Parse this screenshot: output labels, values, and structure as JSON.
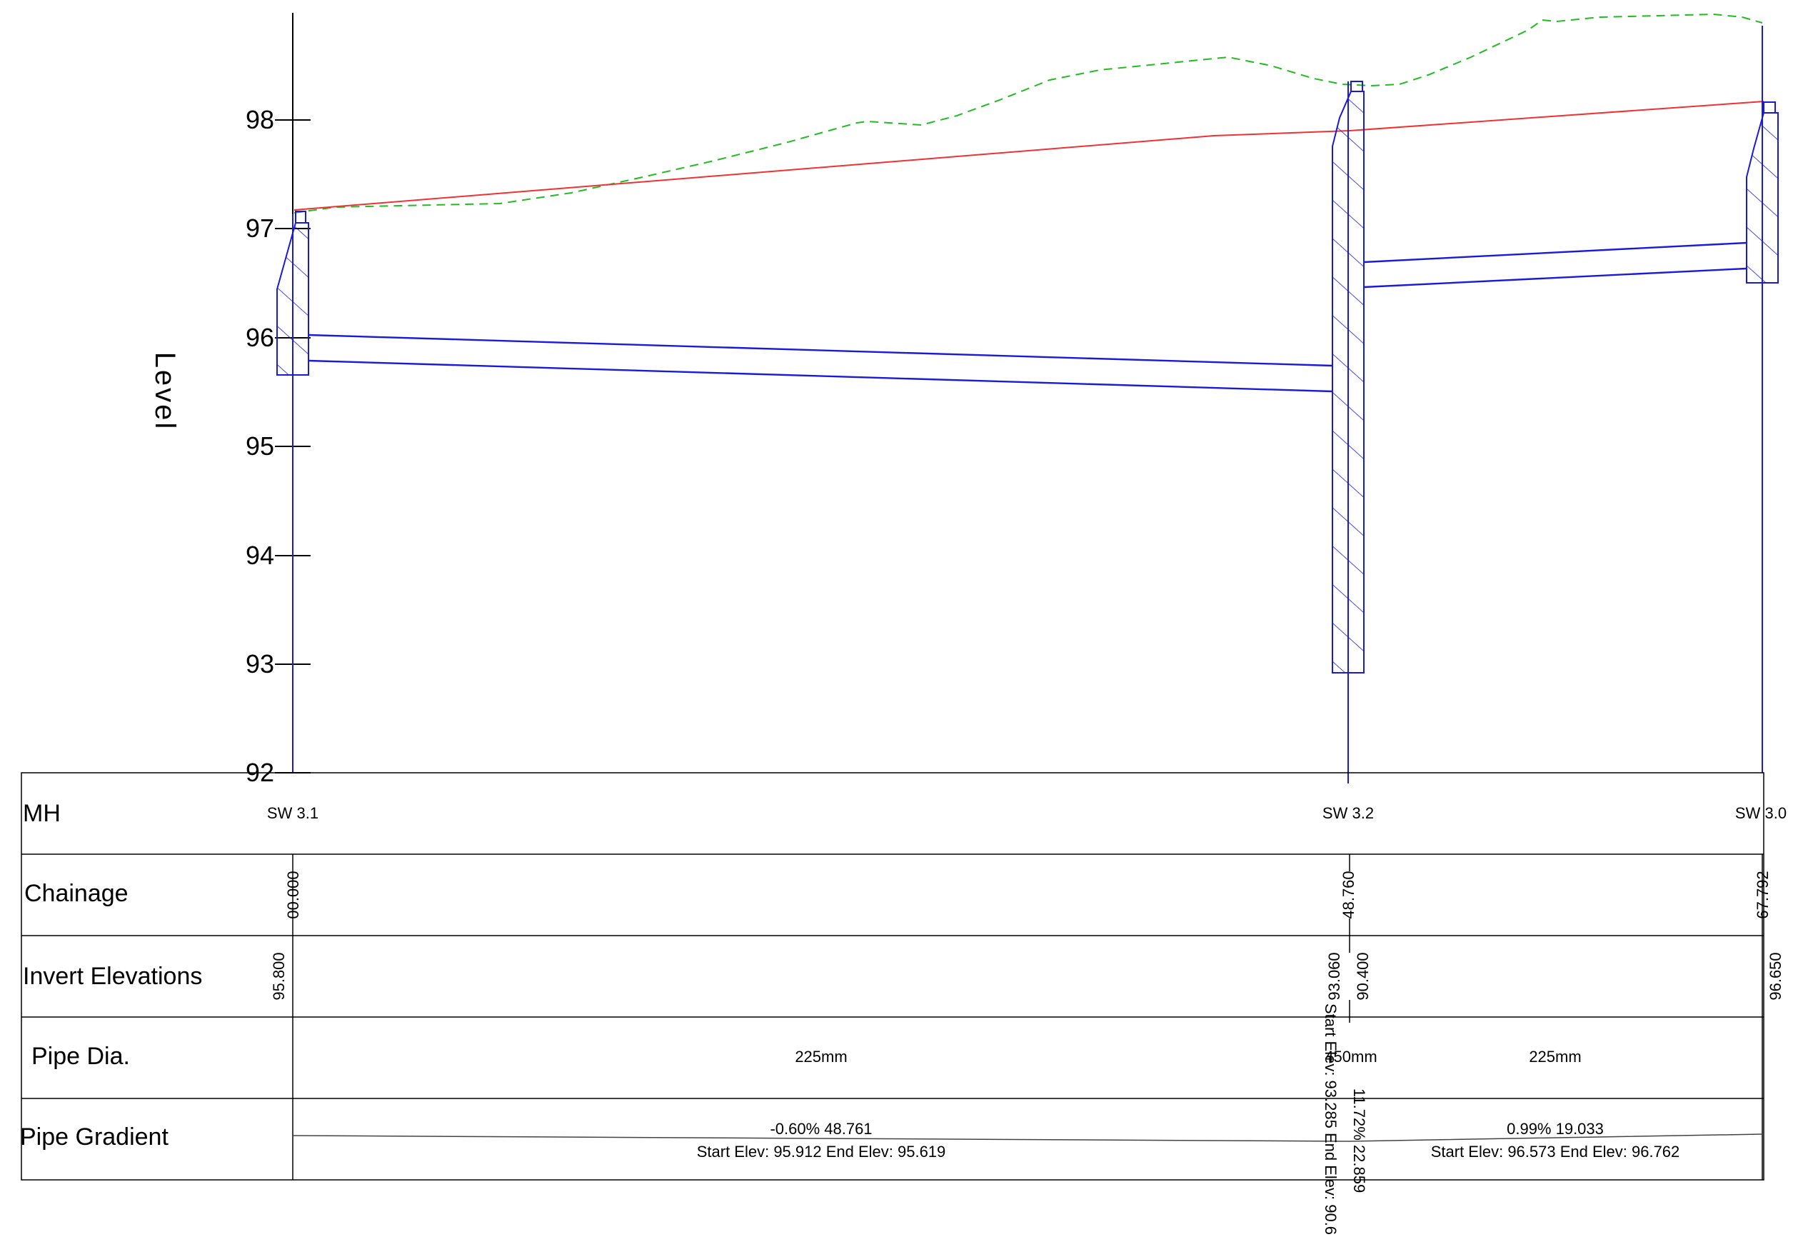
{
  "axis": {
    "title": "Level",
    "ymin": 92,
    "ymax": 98,
    "ticks": [
      "92",
      "93",
      "94",
      "95",
      "96",
      "97",
      "98"
    ]
  },
  "table": {
    "rows": {
      "mh": "MH",
      "chainage": "Chainage",
      "invert": "Invert Elevations",
      "dia": "Pipe Dia.",
      "gradient": "Pipe Gradient"
    }
  },
  "manholes": [
    {
      "id": "SW 3.1",
      "chainage": "00.000",
      "inverts": [
        "95.800"
      ]
    },
    {
      "id": "SW 3.2",
      "chainage": "48.760",
      "inverts": [
        "93.060",
        "90.400"
      ]
    },
    {
      "id": "SW 3.0",
      "chainage": "67.792",
      "inverts": [
        "96.650"
      ]
    }
  ],
  "pipes": [
    {
      "dia": "225mm",
      "gradient": "-0.60% 48.761",
      "elevations": "Start Elev: 95.912 End Elev: 95.619"
    },
    {
      "dia": "450mm",
      "gradient": "11.72% 22.859",
      "elevations": "Start Elev: 93.285 End Elev: 90.6"
    },
    {
      "dia": "225mm",
      "gradient": "0.99% 19.033",
      "elevations": "Start Elev: 96.573 End Elev: 96.762"
    }
  ],
  "colors": {
    "ground": "#22bb22",
    "design": "#ee3333",
    "structure": "#1a1adb",
    "grid": "#000000"
  }
}
